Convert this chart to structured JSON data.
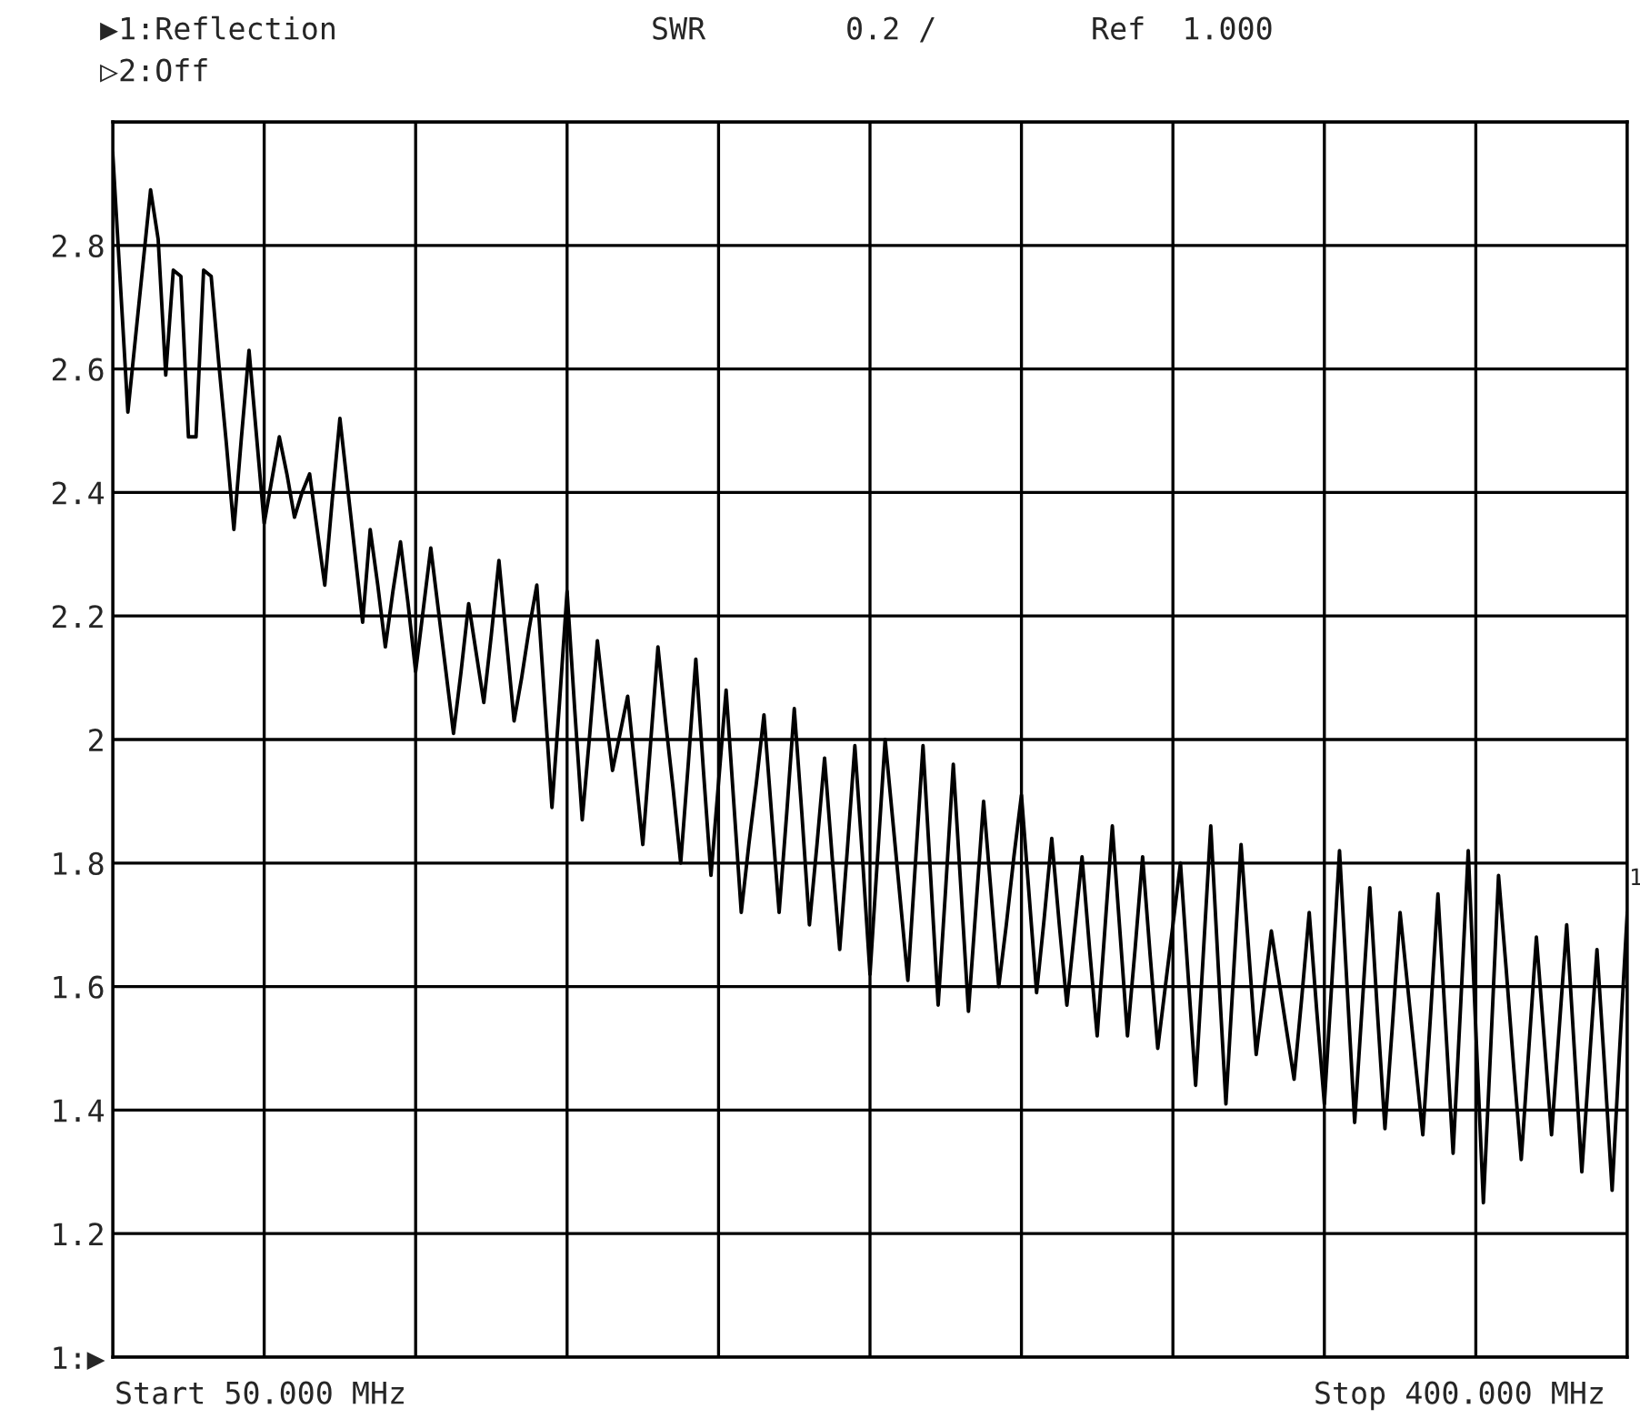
{
  "chart_data": {
    "type": "line",
    "annotations": [
      "▶1:Reflection",
      "SWR",
      "0.2 /",
      "Ref  1.000",
      "▷2:Off",
      "Start 50.000 MHz",
      "Stop 400.000 MHz",
      "1"
    ],
    "categories": [
      null,
      null,
      null,
      null,
      null,
      null,
      null,
      null,
      null,
      null,
      null,
      null,
      null,
      null,
      null,
      null,
      null,
      null,
      null,
      null,
      null,
      null,
      null,
      null,
      null,
      null,
      null,
      null,
      null,
      null,
      null,
      null,
      null,
      null,
      null,
      null,
      null,
      null,
      null,
      null,
      null,
      null,
      null,
      null,
      null,
      null,
      null,
      null,
      null,
      null,
      null,
      null,
      null,
      null,
      null,
      null,
      null,
      null,
      null,
      null,
      null,
      null,
      null,
      null,
      null,
      null,
      null,
      null,
      null,
      null,
      null,
      null,
      null,
      null,
      null,
      null,
      null,
      null,
      null,
      null,
      null,
      null,
      null,
      null,
      null,
      null,
      null,
      null,
      null,
      null,
      null,
      null,
      null,
      null,
      null,
      null,
      null,
      null,
      null,
      null,
      null,
      null,
      null,
      null,
      null,
      null,
      null,
      null,
      null,
      null,
      null,
      null,
      null,
      null,
      null,
      null,
      null,
      null,
      null,
      null,
      null,
      null,
      null,
      null,
      null,
      null,
      null,
      null,
      null,
      null,
      null,
      null,
      null,
      null,
      null,
      null,
      null,
      null,
      null,
      null,
      null,
      null,
      null,
      null,
      null,
      null,
      null,
      null,
      null,
      null,
      null,
      null,
      null,
      null,
      null,
      null,
      null,
      null,
      null,
      null,
      null,
      null,
      null,
      null,
      null,
      null,
      null,
      null,
      null,
      null,
      null,
      null,
      null,
      null,
      null,
      null,
      null,
      null,
      null,
      null,
      null,
      null,
      null,
      null,
      null,
      null,
      null,
      null,
      null,
      null,
      null,
      null,
      null,
      null,
      null,
      null,
      null,
      null,
      null,
      null,
      null
    ],
    "ylim": [
      1,
      3
    ],
    "yticks": [
      {
        "value": 1,
        "label": "1:▶"
      },
      1.2,
      1.4,
      1.6,
      1.8,
      2,
      2.2,
      2.4,
      2.6,
      2.8,
      {
        "value": 3,
        "label": null
      }
    ],
    "grid": true,
    "marker": "none",
    "line_style": "solid",
    "series": [
      {
        "color": "#000000",
        "values": [
          2.95,
          2.74,
          2.53,
          2.65,
          2.77,
          2.89,
          2.81,
          2.59,
          2.76,
          2.75,
          2.49,
          2.49,
          2.76,
          2.75,
          2.61,
          2.48,
          2.34,
          2.49,
          2.63,
          2.49,
          2.35,
          2.42,
          2.49,
          2.43,
          2.36,
          2.4,
          2.43,
          2.34,
          2.25,
          2.39,
          2.52,
          2.41,
          2.3,
          2.19,
          2.34,
          2.25,
          2.15,
          2.24,
          2.32,
          2.22,
          2.11,
          2.21,
          2.31,
          2.21,
          2.11,
          2.01,
          2.11,
          2.22,
          2.14,
          2.06,
          2.17,
          2.29,
          2.16,
          2.03,
          2.1,
          2.18,
          2.25,
          2.07,
          1.89,
          2.06,
          2.24,
          2.05,
          1.87,
          2.01,
          2.16,
          2.05,
          1.95,
          2.01,
          2.07,
          1.95,
          1.83,
          1.99,
          2.15,
          2.03,
          1.92,
          1.8,
          1.96,
          2.13,
          1.95,
          1.78,
          1.93,
          2.08,
          1.9,
          1.72,
          1.83,
          1.93,
          2.04,
          1.88,
          1.72,
          1.88,
          2.05,
          1.88,
          1.7,
          1.83,
          1.97,
          1.81,
          1.66,
          1.82,
          1.99,
          1.81,
          1.62,
          1.81,
          2.0,
          1.87,
          1.74,
          1.61,
          1.8,
          1.99,
          1.78,
          1.57,
          1.76,
          1.96,
          1.76,
          1.56,
          1.73,
          1.9,
          1.75,
          1.6,
          1.7,
          1.81,
          1.91,
          1.75,
          1.59,
          1.71,
          1.84,
          1.7,
          1.57,
          1.69,
          1.81,
          1.66,
          1.52,
          1.69,
          1.86,
          1.69,
          1.52,
          1.66,
          1.81,
          1.65,
          1.5,
          1.6,
          1.7,
          1.8,
          1.62,
          1.44,
          1.65,
          1.86,
          1.63,
          1.41,
          1.62,
          1.83,
          1.66,
          1.49,
          1.59,
          1.69,
          1.61,
          1.53,
          1.45,
          1.58,
          1.72,
          1.56,
          1.41,
          1.61,
          1.82,
          1.6,
          1.38,
          1.57,
          1.76,
          1.56,
          1.37,
          1.54,
          1.72,
          1.6,
          1.48,
          1.36,
          1.55,
          1.75,
          1.54,
          1.33,
          1.57,
          1.82,
          1.53,
          1.25,
          1.51,
          1.78,
          1.63,
          1.47,
          1.32,
          1.5,
          1.68,
          1.52,
          1.36,
          1.53,
          1.7,
          1.5,
          1.3,
          1.48,
          1.66,
          1.47,
          1.27,
          1.5,
          1.72
        ]
      }
    ]
  }
}
